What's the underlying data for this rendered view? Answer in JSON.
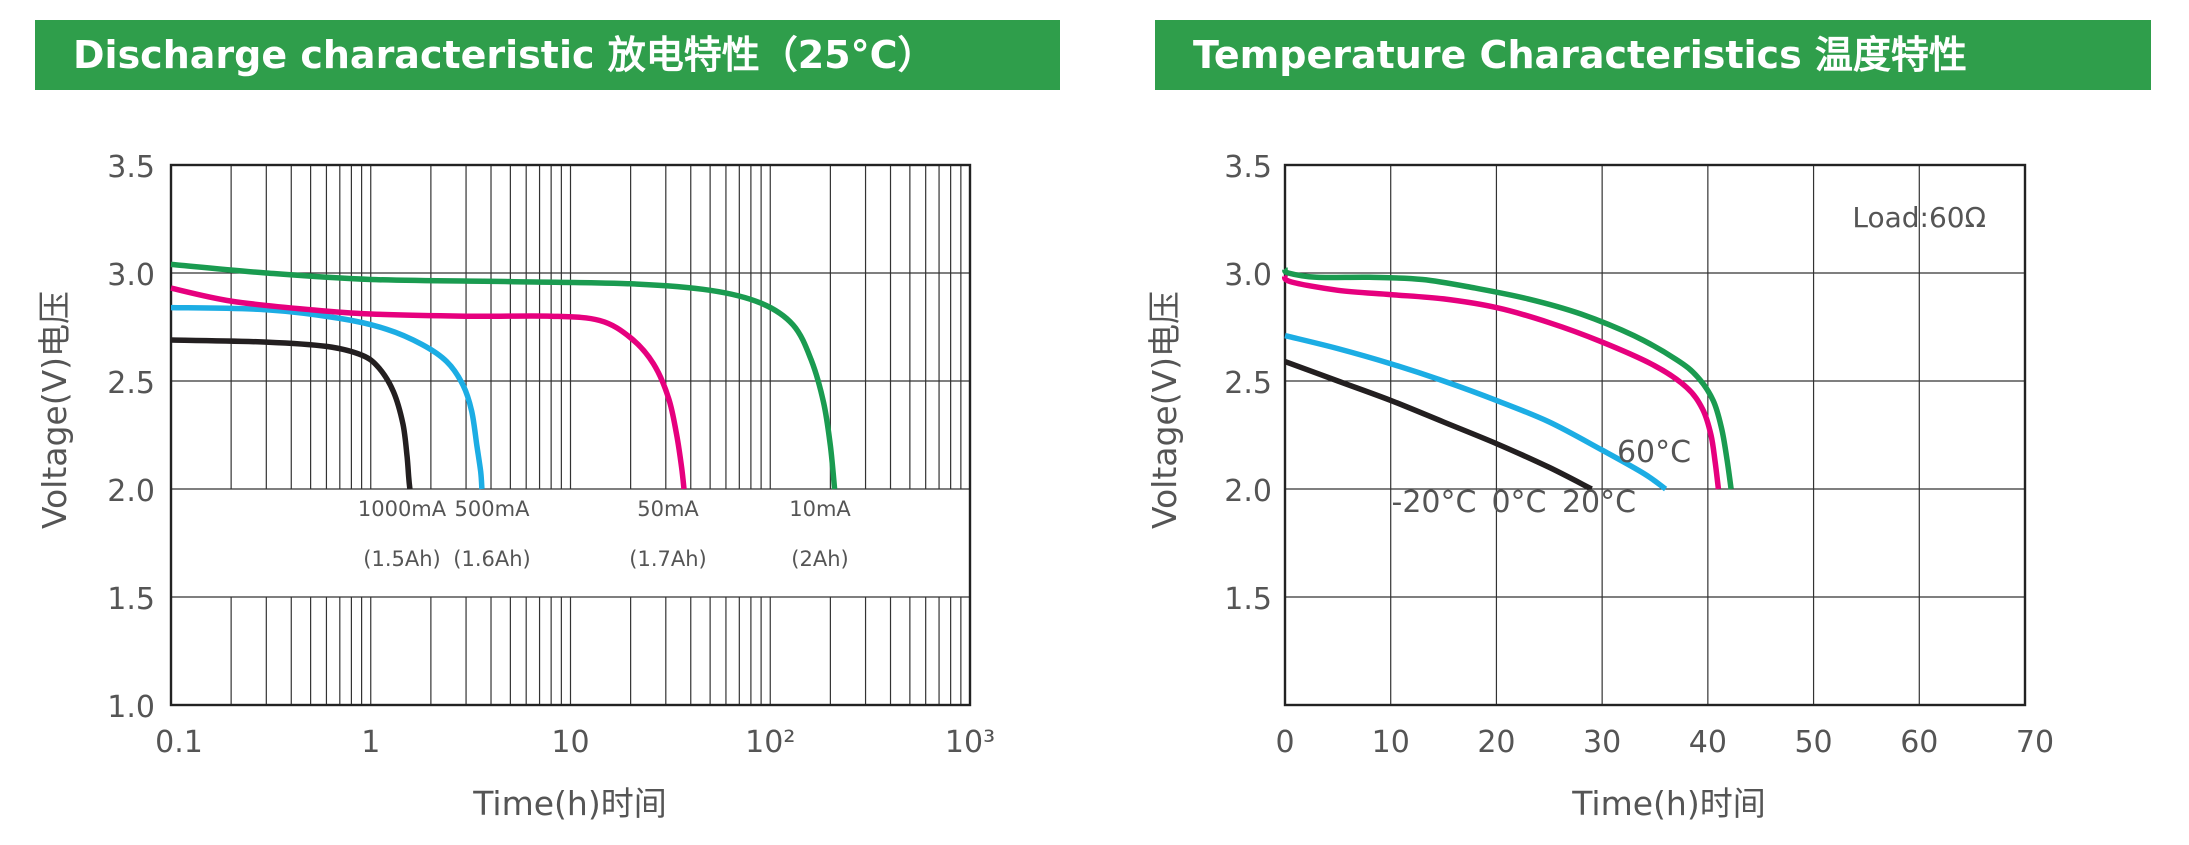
{
  "banners": {
    "left": "Discharge characteristic  放电特性（25°C）",
    "right": "Temperature Characteristics  温度特性"
  },
  "colors": {
    "banner": "#2f9e4b",
    "black": "#231f20",
    "cyan": "#1cade4",
    "magenta": "#e6007e",
    "green": "#1a9b50"
  },
  "chart_data": [
    {
      "type": "line",
      "title": "Discharge characteristic 放电特性（25°C）",
      "xlabel": "Time(h)时间",
      "ylabel": "Voltage(V)电压",
      "xscale": "log",
      "xlim": [
        0.1,
        1000
      ],
      "ylim": [
        1.0,
        3.5
      ],
      "xtick_labels": [
        "0.1",
        "1",
        "10",
        "10²",
        "10³"
      ],
      "ytick_labels": [
        "1.0",
        "1.5",
        "2.0",
        "2.5",
        "3.0",
        "3.5"
      ],
      "grid": true,
      "series": [
        {
          "name": "1000mA",
          "capacity": "(1.5Ah)",
          "color": "#231f20",
          "x": [
            0.1,
            0.3,
            0.6,
            0.9,
            1.1,
            1.3,
            1.45,
            1.52,
            1.55,
            1.57
          ],
          "y": [
            2.69,
            2.68,
            2.66,
            2.62,
            2.56,
            2.45,
            2.3,
            2.15,
            2.05,
            2.0
          ]
        },
        {
          "name": "500mA",
          "capacity": "(1.6Ah)",
          "color": "#1cade4",
          "x": [
            0.1,
            0.3,
            0.7,
            1.2,
            1.8,
            2.4,
            2.9,
            3.2,
            3.4,
            3.55,
            3.6
          ],
          "y": [
            2.84,
            2.83,
            2.79,
            2.74,
            2.67,
            2.59,
            2.48,
            2.36,
            2.2,
            2.08,
            2.0
          ]
        },
        {
          "name": "50mA",
          "capacity": "(1.7Ah)",
          "color": "#e6007e",
          "x": [
            0.1,
            0.2,
            0.5,
            1,
            3,
            8,
            14,
            20,
            26,
            31,
            34,
            36,
            37
          ],
          "y": [
            2.93,
            2.87,
            2.83,
            2.81,
            2.8,
            2.8,
            2.78,
            2.7,
            2.58,
            2.42,
            2.25,
            2.1,
            2.0
          ]
        },
        {
          "name": "10mA",
          "capacity": "(2Ah)",
          "color": "#1a9b50",
          "x": [
            0.1,
            0.3,
            1,
            5,
            20,
            50,
            90,
            130,
            160,
            185,
            200,
            210
          ],
          "y": [
            3.04,
            3.0,
            2.97,
            2.96,
            2.95,
            2.92,
            2.86,
            2.76,
            2.6,
            2.4,
            2.2,
            2.0
          ]
        }
      ]
    },
    {
      "type": "line",
      "title": "Temperature Characteristics 温度特性",
      "xlabel": "Time(h)时间",
      "ylabel": "Voltage(V)电压",
      "xlim": [
        0,
        70
      ],
      "ylim": [
        1.0,
        3.5
      ],
      "xtick_labels": [
        "0",
        "10",
        "20",
        "30",
        "40",
        "50",
        "60",
        "70"
      ],
      "ytick_labels": [
        "1.5",
        "2.0",
        "2.5",
        "3.0",
        "3.5"
      ],
      "grid": true,
      "annotation": "Load:60Ω",
      "series": [
        {
          "name": "-20°C",
          "color": "#231f20",
          "x": [
            0,
            5,
            10,
            15,
            20,
            25,
            29
          ],
          "y": [
            2.59,
            2.5,
            2.41,
            2.31,
            2.21,
            2.1,
            2.0
          ]
        },
        {
          "name": "0°C",
          "color": "#1cade4",
          "x": [
            0,
            5,
            10,
            15,
            20,
            25,
            30,
            34,
            36
          ],
          "y": [
            2.71,
            2.65,
            2.58,
            2.5,
            2.41,
            2.31,
            2.18,
            2.07,
            2.0
          ]
        },
        {
          "name": "20°C",
          "color": "#e6007e",
          "x": [
            0,
            0.5,
            5,
            10,
            15,
            20,
            25,
            30,
            35,
            38,
            39.5,
            40.3,
            40.7,
            41
          ],
          "y": [
            2.99,
            2.96,
            2.92,
            2.9,
            2.88,
            2.84,
            2.77,
            2.68,
            2.57,
            2.47,
            2.37,
            2.25,
            2.12,
            2.0
          ]
        },
        {
          "name": "60°C",
          "color": "#1a9b50",
          "x": [
            0,
            0.3,
            3,
            8,
            13,
            18,
            23,
            28,
            33,
            37,
            39,
            40.5,
            41.3,
            41.8,
            42.2
          ],
          "y": [
            3.02,
            3.0,
            2.98,
            2.98,
            2.97,
            2.93,
            2.88,
            2.81,
            2.71,
            2.6,
            2.52,
            2.41,
            2.28,
            2.14,
            2.0
          ]
        }
      ]
    }
  ]
}
